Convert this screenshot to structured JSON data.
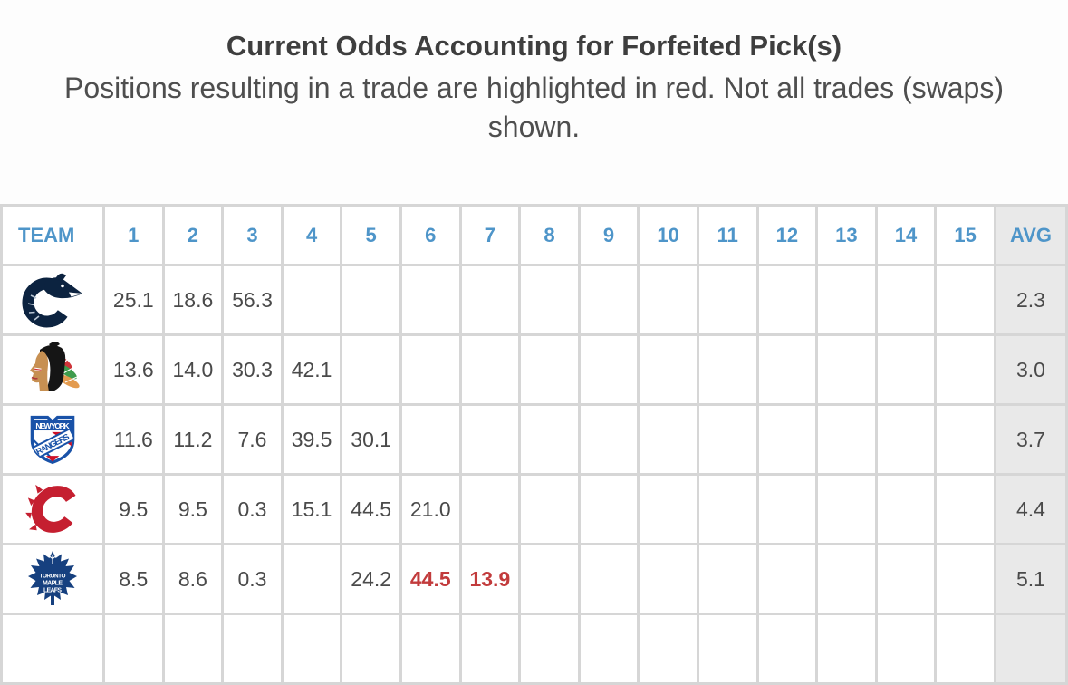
{
  "chart_data": {
    "type": "table",
    "title": "Current Odds Accounting for Forfeited Pick(s)",
    "subtitle": "Positions resulting in a trade are highlighted in red. Not all trades (swaps) shown.",
    "columns": [
      "TEAM",
      "1",
      "2",
      "3",
      "4",
      "5",
      "6",
      "7",
      "8",
      "9",
      "10",
      "11",
      "12",
      "13",
      "14",
      "15",
      "AVG"
    ],
    "rows": [
      {
        "logo": "vancouver-canucks-logo",
        "odds": [
          "25.1",
          "18.6",
          "56.3",
          "",
          "",
          "",
          "",
          "",
          "",
          "",
          "",
          "",
          "",
          "",
          ""
        ],
        "red": [],
        "avg": "2.3"
      },
      {
        "logo": "chicago-blackhawks-logo",
        "odds": [
          "13.6",
          "14.0",
          "30.3",
          "42.1",
          "",
          "",
          "",
          "",
          "",
          "",
          "",
          "",
          "",
          "",
          ""
        ],
        "red": [],
        "avg": "3.0"
      },
      {
        "logo": "new-york-rangers-logo",
        "odds": [
          "11.6",
          "11.2",
          "7.6",
          "39.5",
          "30.1",
          "",
          "",
          "",
          "",
          "",
          "",
          "",
          "",
          "",
          ""
        ],
        "red": [],
        "avg": "3.7"
      },
      {
        "logo": "calgary-flames-logo",
        "odds": [
          "9.5",
          "9.5",
          "0.3",
          "15.1",
          "44.5",
          "21.0",
          "",
          "",
          "",
          "",
          "",
          "",
          "",
          "",
          ""
        ],
        "red": [],
        "avg": "4.4"
      },
      {
        "logo": "toronto-maple-leafs-logo",
        "odds": [
          "8.5",
          "8.6",
          "0.3",
          "",
          "24.2",
          "44.5",
          "13.9",
          "",
          "",
          "",
          "",
          "",
          "",
          "",
          ""
        ],
        "red": [
          5,
          6
        ],
        "avg": "5.1"
      }
    ],
    "partial_next_row_visible": true,
    "legend_note": "red = position resulting in a trade",
    "layout": {
      "grid": "on",
      "avg_column_shaded": true
    }
  },
  "colors": {
    "header_text_blue": "#4e95c9",
    "highlight_red": "#c23b3c",
    "cell_text": "#4a4a4a",
    "avg_column_background": "#e9e9e9",
    "grid_line": "#d6d6d6",
    "page_background": "#fdfdfd"
  }
}
